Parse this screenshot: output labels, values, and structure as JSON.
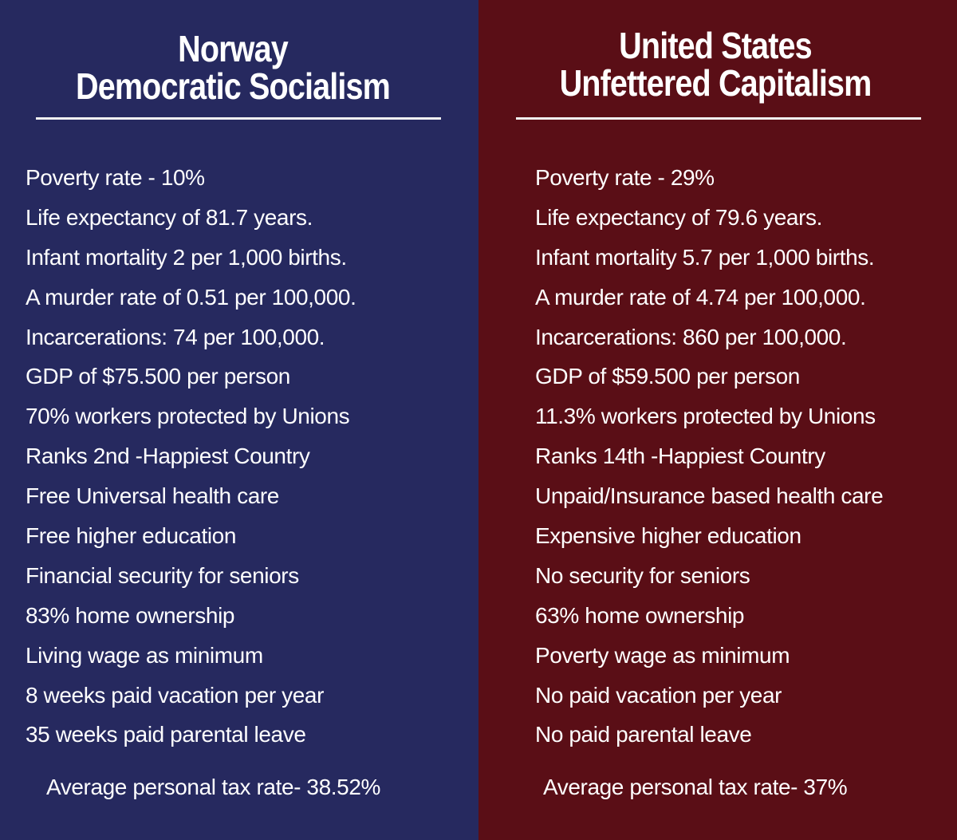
{
  "colors": {
    "norway_bg": "#26295f",
    "us_bg": "#5a0e16",
    "text": "#ffffff"
  },
  "norway": {
    "title_line1": "Norway",
    "title_line2": "Democratic Socialism",
    "stats": [
      "Poverty rate - 10%",
      "Life expectancy of 81.7 years.",
      "Infant mortality 2 per 1,000 births.",
      "A murder rate of 0.51 per 100,000.",
      "Incarcerations: 74 per 100,000.",
      "GDP of $75.500 per person",
      "70% workers protected by Unions",
      "Ranks 2nd -Happiest Country",
      "Free Universal health care",
      "Free higher education",
      "Financial security for seniors",
      "83% home ownership",
      "Living wage as minimum",
      "8 weeks paid vacation per year",
      "35 weeks paid parental leave"
    ],
    "tax": "Average personal tax rate- 38.52%"
  },
  "us": {
    "title_line1": "United States",
    "title_line2": "Unfettered Capitalism",
    "stats": [
      "Poverty rate - 29%",
      "Life expectancy of 79.6 years.",
      "Infant mortality 5.7 per 1,000 births.",
      "A murder rate of 4.74 per 100,000.",
      "Incarcerations: 860 per 100,000.",
      "GDP of $59.500 per person",
      "11.3% workers protected by Unions",
      "Ranks 14th -Happiest Country",
      "Unpaid/Insurance based health care",
      "Expensive higher education",
      "No security for seniors",
      "63% home ownership",
      "Poverty wage as minimum",
      "No paid vacation per year",
      "No paid parental leave"
    ],
    "tax": "Average personal tax rate- 37%"
  }
}
